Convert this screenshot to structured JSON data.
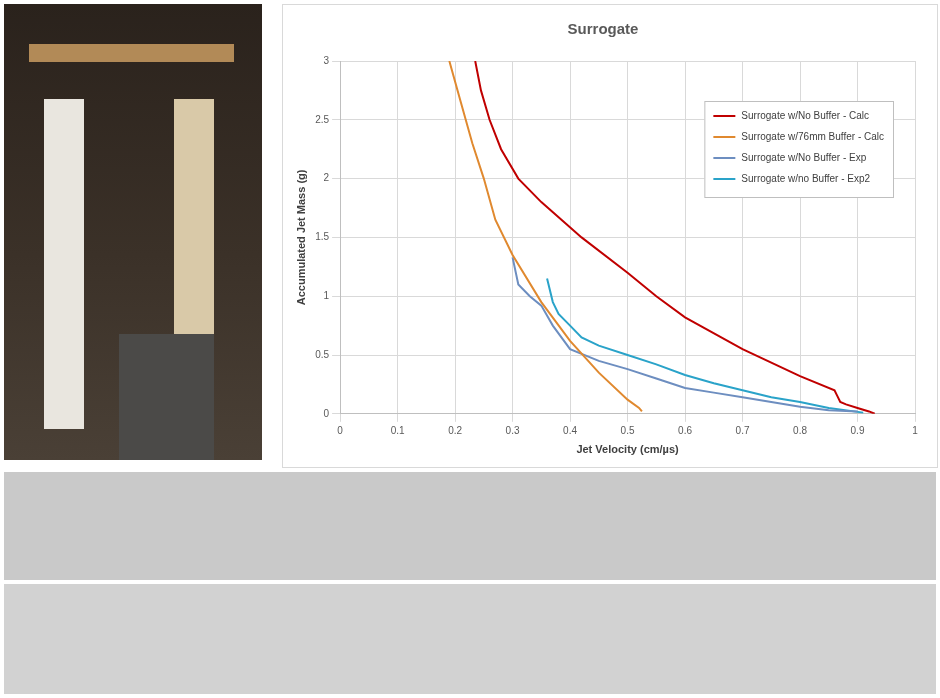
{
  "chart_data": {
    "type": "line",
    "title": "Surrogate",
    "x_label": "Jet Velocity (cm/µs)",
    "y_label": "Accumulated Jet Mass (g)",
    "xlim": [
      0,
      1
    ],
    "xticks": [
      0,
      0.1,
      0.2,
      0.3,
      0.4,
      0.5,
      0.6,
      0.7,
      0.8,
      0.9,
      1
    ],
    "ylim": [
      0,
      3
    ],
    "yticks": [
      0,
      0.5,
      1,
      1.5,
      2,
      2.5,
      3
    ],
    "grid": true,
    "legend": "upper right",
    "series": [
      {
        "name": "Surrogate w/No Buffer - Calc",
        "color": "#c00000",
        "x": [
          0.93,
          0.92,
          0.9,
          0.88,
          0.87,
          0.865,
          0.86,
          0.8,
          0.7,
          0.6,
          0.55,
          0.5,
          0.42,
          0.35,
          0.31,
          0.28,
          0.26,
          0.245,
          0.235
        ],
        "values": [
          0,
          0.02,
          0.05,
          0.08,
          0.1,
          0.15,
          0.2,
          0.32,
          0.55,
          0.82,
          1.0,
          1.2,
          1.5,
          1.8,
          2.0,
          2.25,
          2.5,
          2.75,
          3.0
        ]
      },
      {
        "name": "Surrogate w/76mm Buffer - Calc",
        "color": "#e0892f",
        "x": [
          0.525,
          0.52,
          0.5,
          0.45,
          0.4,
          0.35,
          0.3,
          0.27,
          0.25,
          0.23,
          0.21,
          0.19
        ],
        "values": [
          0.02,
          0.05,
          0.12,
          0.35,
          0.62,
          0.95,
          1.35,
          1.65,
          2.0,
          2.3,
          2.65,
          3.0
        ]
      },
      {
        "name": "Surrogate w/No Buffer - Exp",
        "color": "#6d8ec0",
        "x": [
          0.9,
          0.85,
          0.8,
          0.75,
          0.7,
          0.65,
          0.6,
          0.55,
          0.5,
          0.45,
          0.4,
          0.37,
          0.35,
          0.33,
          0.31,
          0.3
        ],
        "values": [
          0.02,
          0.03,
          0.06,
          0.1,
          0.14,
          0.18,
          0.22,
          0.3,
          0.38,
          0.45,
          0.55,
          0.75,
          0.92,
          1.0,
          1.1,
          1.33
        ]
      },
      {
        "name": "Surrogate w/no Buffer - Exp2",
        "color": "#2aa3c9",
        "x": [
          0.91,
          0.85,
          0.8,
          0.75,
          0.7,
          0.65,
          0.6,
          0.55,
          0.5,
          0.45,
          0.42,
          0.4,
          0.38,
          0.37,
          0.36
        ],
        "values": [
          0.01,
          0.05,
          0.1,
          0.14,
          0.2,
          0.26,
          0.33,
          0.42,
          0.5,
          0.58,
          0.65,
          0.75,
          0.85,
          0.95,
          1.15
        ]
      }
    ]
  }
}
